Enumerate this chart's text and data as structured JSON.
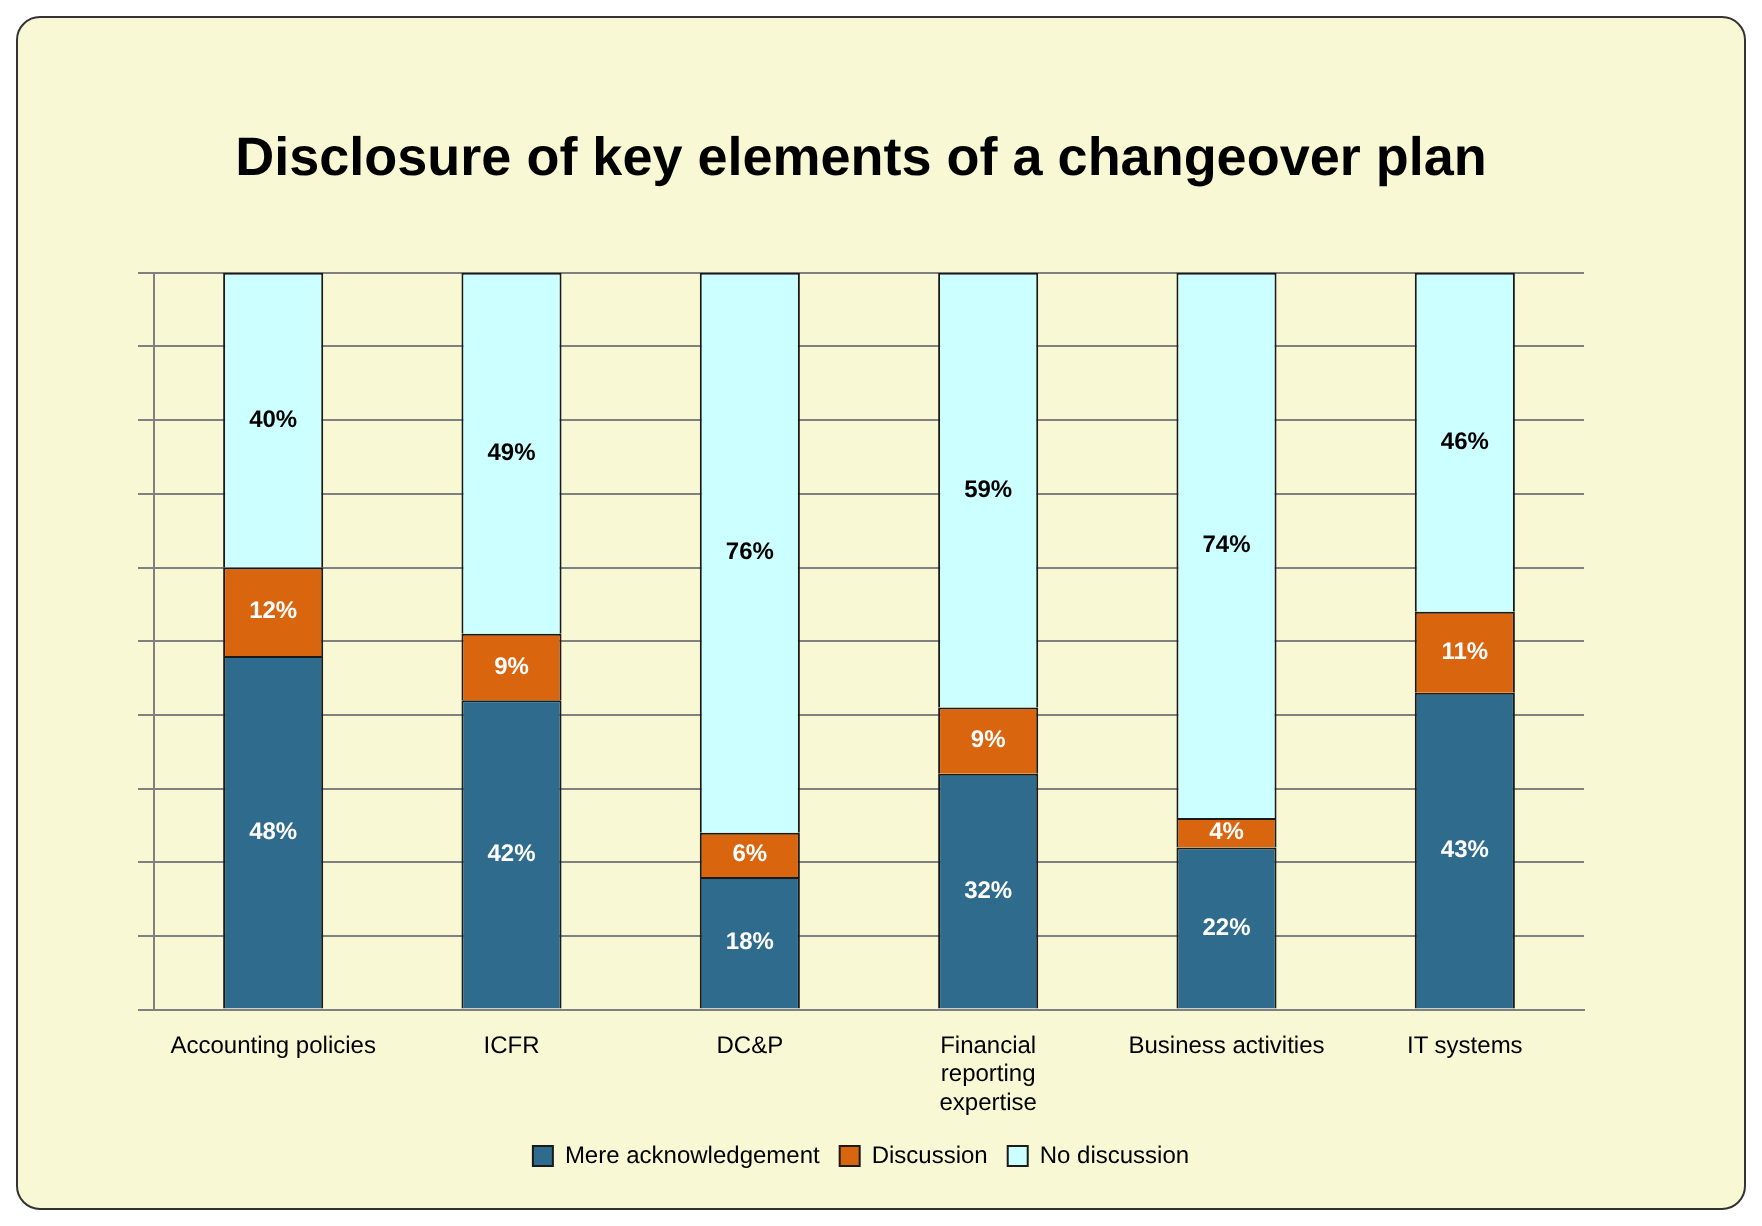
{
  "chart_data": {
    "type": "bar",
    "title": "Disclosure of key elements of a changeover plan",
    "categories": [
      "Accounting policies",
      "ICFR",
      "DC&P",
      "Financial reporting expertise",
      "Business activities",
      "IT systems"
    ],
    "stacked": true,
    "grid": "y",
    "tick_labels": "x",
    "legend": "bottom",
    "series": [
      {
        "name": "Mere acknowledgement",
        "color": "#2e6b8c",
        "values": [
          48,
          42,
          18,
          32,
          22,
          43
        ],
        "value_labels": [
          "48%",
          "42%",
          "18%",
          "32%",
          "22%",
          "43%"
        ]
      },
      {
        "name": "Discussion",
        "color": "#d9650f",
        "values": [
          12,
          9,
          6,
          9,
          4,
          11
        ],
        "value_labels": [
          "12%",
          "9%",
          "6%",
          "9%",
          "4%",
          "11%"
        ]
      },
      {
        "name": "No discussion",
        "color": "#ccffff",
        "values": [
          40,
          49,
          76,
          59,
          74,
          46
        ],
        "value_labels": [
          "40%",
          "49%",
          "76%",
          "59%",
          "74%",
          "46%"
        ]
      }
    ]
  }
}
